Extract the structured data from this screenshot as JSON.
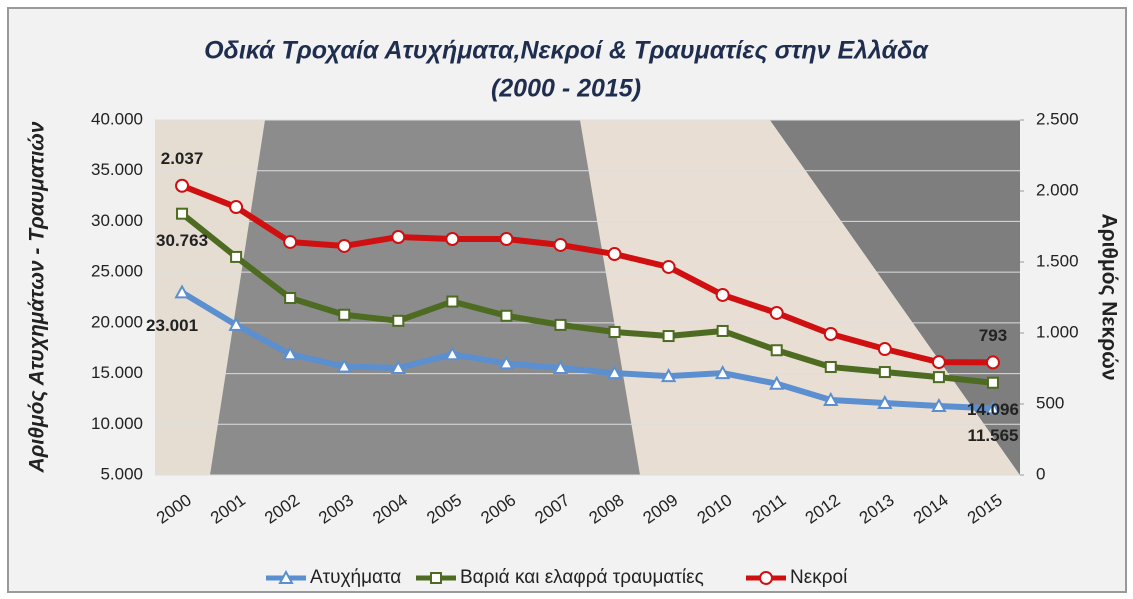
{
  "chart_data": {
    "type": "line",
    "title": "Οδικά Τροχαία Ατυχήματα,Νεκροί & Τραυματίες στην Ελλάδα",
    "subtitle": "(2000 - 2015)",
    "y_label": "Αριθμός Ατυχημάτων - Τραυματιών",
    "y2_label": "Αριθμός Νεκρών",
    "categories": [
      "2000",
      "2001",
      "2002",
      "2003",
      "2004",
      "2005",
      "2006",
      "2007",
      "2008",
      "2009",
      "2010",
      "2011",
      "2012",
      "2013",
      "2014",
      "2015"
    ],
    "ylim": [
      5000,
      40000
    ],
    "yticks": [
      {
        "value": 5000,
        "label": "5.000"
      },
      {
        "value": 10000,
        "label": "10.000"
      },
      {
        "value": 15000,
        "label": "15.000"
      },
      {
        "value": 20000,
        "label": "20.000"
      },
      {
        "value": 25000,
        "label": "25.000"
      },
      {
        "value": 30000,
        "label": "30.000"
      },
      {
        "value": 35000,
        "label": "35.000"
      },
      {
        "value": 40000,
        "label": "40.000"
      }
    ],
    "y2lim": [
      0,
      2500
    ],
    "y2ticks": [
      0,
      500,
      {
        "value": 1000,
        "label": "1.000"
      },
      {
        "value": 1500,
        "label": "1.500"
      },
      {
        "value": 2000,
        "label": "2.000"
      },
      {
        "value": 2500,
        "label": "2.500"
      }
    ],
    "grid": true,
    "legend": "bottom",
    "series": [
      {
        "name": "Ατυχήματα",
        "color": "#5b8fd0",
        "marker": "triangle",
        "values": [
          23001,
          19800,
          16900,
          15700,
          15550,
          16900,
          16000,
          15550,
          15050,
          14750,
          15050,
          14000,
          12400,
          12100,
          11800,
          11565
        ],
        "value_labels": [
          "23.001",
          null,
          null,
          null,
          null,
          null,
          null,
          null,
          null,
          null,
          null,
          null,
          null,
          null,
          null,
          "11.565"
        ]
      },
      {
        "name": "Βαριά και ελαφρά τραυματίες",
        "color": "#4e6b22",
        "marker": "square",
        "values": [
          30763,
          26500,
          22450,
          20800,
          20200,
          22100,
          20700,
          19800,
          19100,
          18700,
          19200,
          17300,
          15650,
          15150,
          14650,
          14096
        ],
        "value_labels": [
          "30.763",
          null,
          null,
          null,
          null,
          null,
          null,
          null,
          null,
          null,
          null,
          null,
          null,
          null,
          null,
          "14.096"
        ]
      },
      {
        "name": "Νεκροί",
        "color": "#d01010",
        "marker": "circle",
        "axis": "y2",
        "values": [
          2037,
          1887,
          1641,
          1613,
          1676,
          1662,
          1662,
          1620,
          1556,
          1465,
          1268,
          1141,
          993,
          887,
          795,
          793
        ],
        "value_labels": [
          "2.037",
          null,
          null,
          null,
          null,
          null,
          null,
          null,
          null,
          null,
          null,
          null,
          null,
          null,
          null,
          "793"
        ]
      }
    ]
  }
}
